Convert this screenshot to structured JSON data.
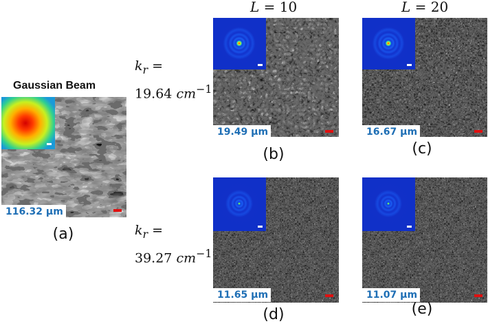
{
  "figure": {
    "gaussian_title": "Gaussian Beam",
    "col_headers": [
      {
        "var": "L",
        "op": " = ",
        "value": "10"
      },
      {
        "var": "L",
        "op": " = ",
        "value": "20"
      }
    ],
    "row_labels": [
      {
        "var": "k",
        "sub": "r",
        "op": " =",
        "value": "19.64",
        "unit": "cm",
        "exp": "−1"
      },
      {
        "var": "k",
        "sub": "r",
        "op": " =",
        "value": "39.27",
        "unit": "cm",
        "exp": "−1"
      }
    ],
    "panels": [
      {
        "letter": "(a)",
        "size_label": "116.32 μm",
        "inset": "gaussian"
      },
      {
        "letter": "(b)",
        "size_label": "19.49 μm",
        "inset": "bessel"
      },
      {
        "letter": "(c)",
        "size_label": "16.67 μm",
        "inset": "bessel"
      },
      {
        "letter": "(d)",
        "size_label": "11.65 μm",
        "inset": "bessel"
      },
      {
        "letter": "(e)",
        "size_label": "11.07 μm",
        "inset": "bessel"
      }
    ],
    "colors": {
      "size_label_text": "#1f6fb5",
      "scalebar": "#e01010",
      "inset_bg": "#1030c8"
    }
  }
}
